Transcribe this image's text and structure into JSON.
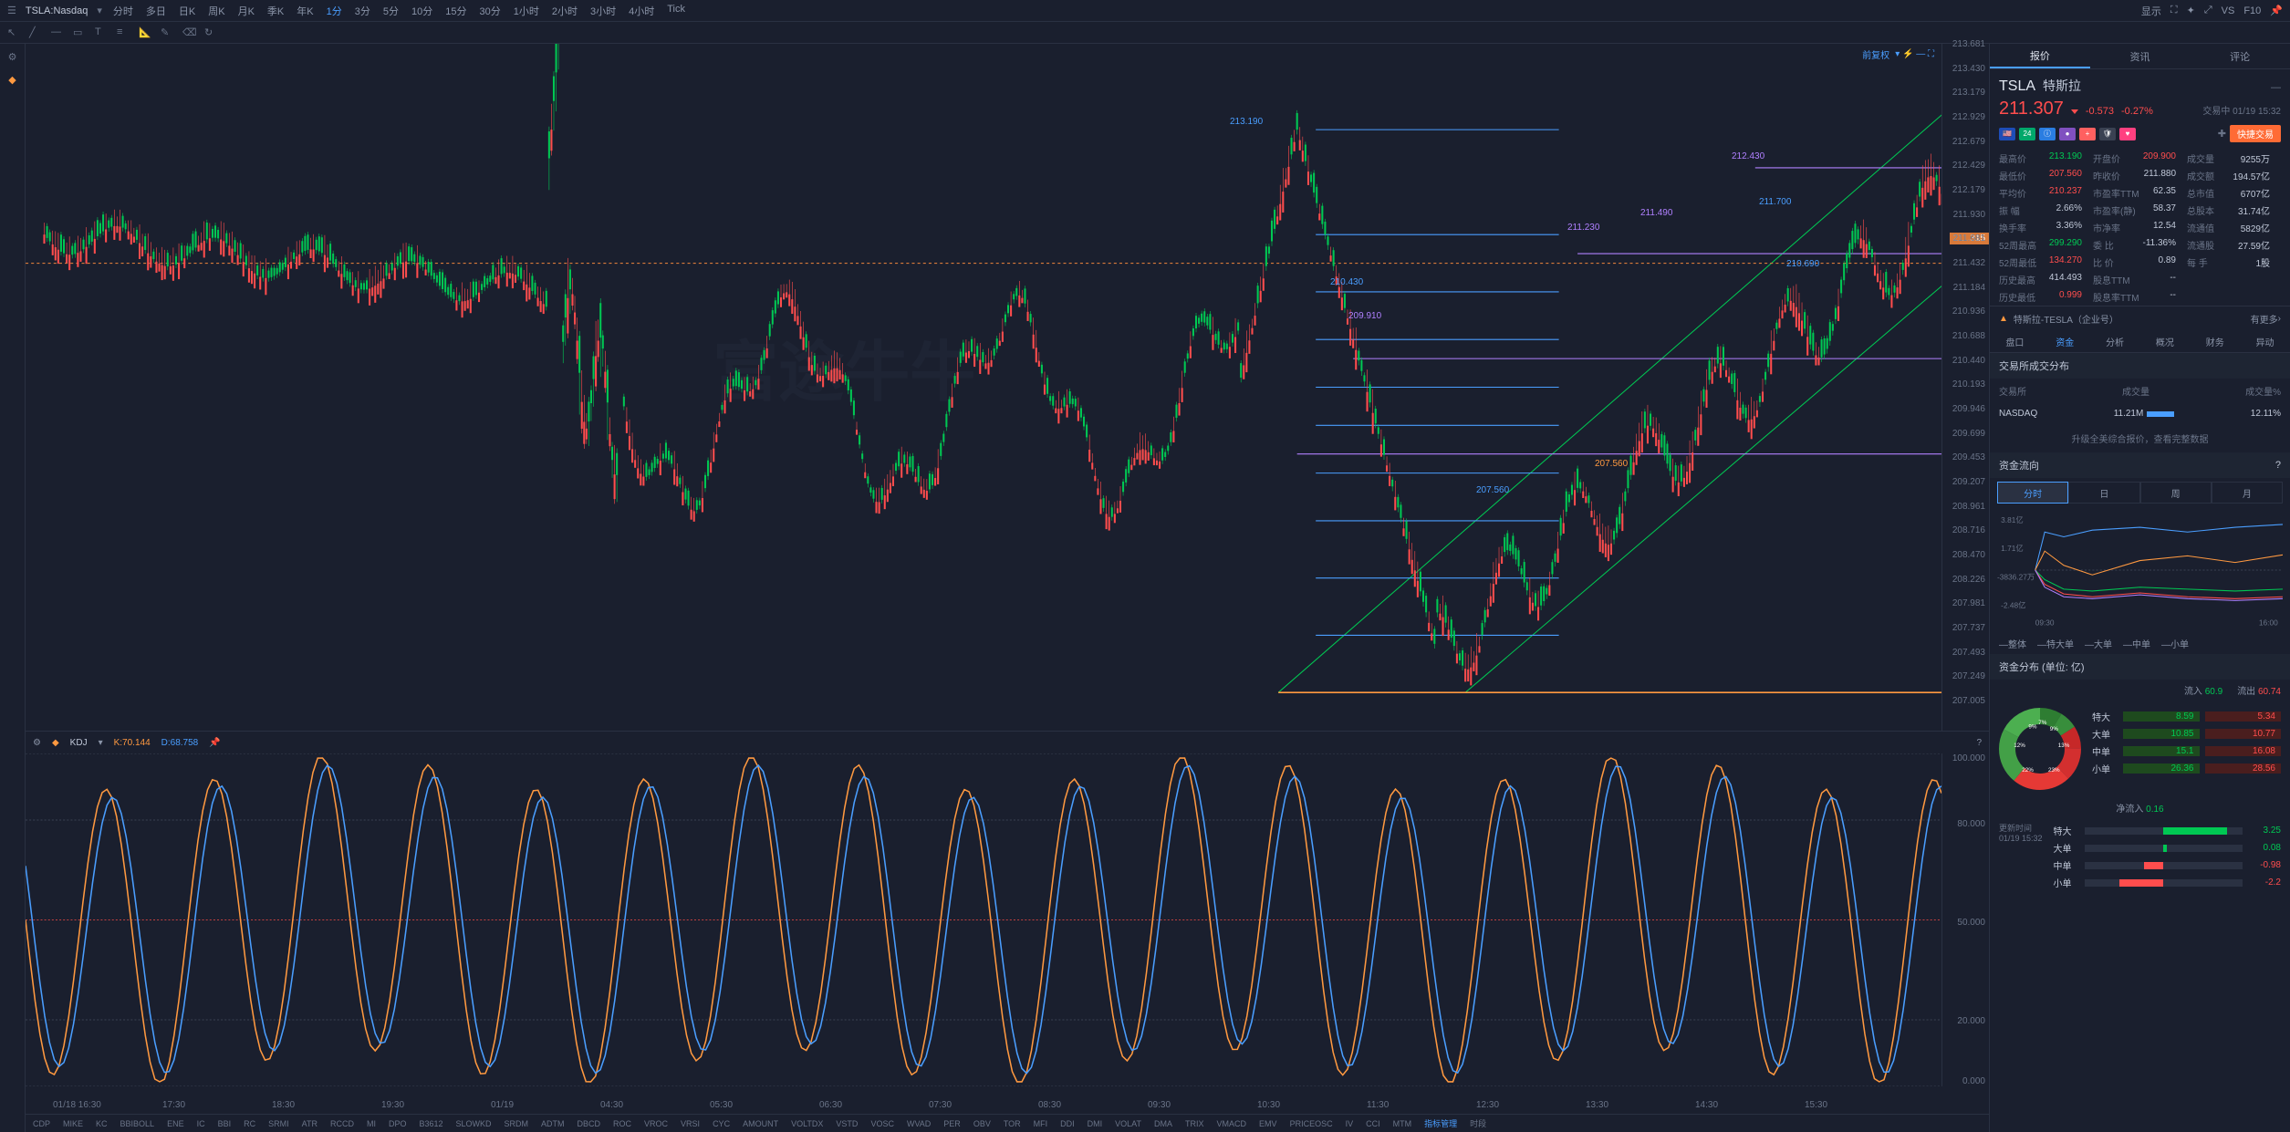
{
  "topbar": {
    "ticker": "TSLA:Nasdaq",
    "timeframes": [
      "分时",
      "多日",
      "日K",
      "周K",
      "月K",
      "季K",
      "年K",
      "1分",
      "3分",
      "5分",
      "10分",
      "15分",
      "30分",
      "1小时",
      "2小时",
      "3小时",
      "4小时",
      "Tick"
    ],
    "active_tf": "1分",
    "right": {
      "display": "显示",
      "vs": "VS",
      "f10": "F10"
    }
  },
  "chart": {
    "adj_label": "前复权",
    "price_ticks": [
      "213.681",
      "213.430",
      "213.179",
      "212.929",
      "212.679",
      "212.429",
      "212.179",
      "211.930",
      "211.681",
      "211.432",
      "211.184",
      "210.936",
      "210.688",
      "210.440",
      "210.193",
      "209.946",
      "209.699",
      "209.453",
      "209.207",
      "208.961",
      "208.716",
      "208.470",
      "208.226",
      "207.981",
      "207.737",
      "207.493",
      "207.249",
      "207.005"
    ],
    "current_price": "211.315",
    "price_marker_alt": "211.184",
    "annotations": {
      "a1": "213.190",
      "a2": "212.430",
      "a3": "211.700",
      "a4": "211.490",
      "a5": "211.230",
      "a6": "210.690",
      "a7": "210.430",
      "a8": "209.910",
      "a9": "207.560",
      "a10": "207.560"
    },
    "time_ticks": [
      "01/18 16:30",
      "17:30",
      "18:30",
      "19:30",
      "01/19",
      "04:30",
      "05:30",
      "06:30",
      "07:30",
      "08:30",
      "09:30",
      "10:30",
      "11:30",
      "12:30",
      "13:30",
      "14:30",
      "15:30"
    ],
    "watermark": "富途牛牛"
  },
  "kdj": {
    "title": "KDJ",
    "k_label": "K:70.144",
    "d_label": "D:68.758",
    "y_ticks": [
      "100.000",
      "80.000",
      "50.000",
      "20.000",
      "0.000"
    ]
  },
  "indicators": [
    "CDP",
    "MIKE",
    "KC",
    "BBIBOLL",
    "ENE",
    "IC",
    "BBI",
    "RC",
    "SRMI",
    "ATR",
    "RCCD",
    "MI",
    "DPO",
    "B3612",
    "SLOWKD",
    "SRDM",
    "ADTM",
    "DBCD",
    "ROC",
    "VROC",
    "VRSI",
    "CYC",
    "AMOUNT",
    "VOLTDX",
    "VSTD",
    "VOSC",
    "WVAD",
    "PER",
    "OBV",
    "TOR",
    "MFI",
    "DDI",
    "DMI",
    "VOLAT",
    "DMA",
    "TRIX",
    "VMACD",
    "EMV",
    "PRICEOSC",
    "IV",
    "CCI",
    "MTM",
    "指标管理",
    "时段"
  ],
  "right": {
    "tabs": [
      "报价",
      "资讯",
      "评论"
    ],
    "symbol": "TSLA",
    "name": "特斯拉",
    "price": "211.307",
    "change_abs": "-0.573",
    "change_pct": "-0.27%",
    "timestamp": "交易中 01/19 15:32",
    "quick_trade": "快捷交易",
    "stats": [
      [
        [
          "最高价",
          "213.190",
          "green"
        ],
        [
          "开盘价",
          "209.900",
          "red"
        ],
        [
          "成交量",
          "9255万",
          ""
        ]
      ],
      [
        [
          "最低价",
          "207.560",
          "red"
        ],
        [
          "昨收价",
          "211.880",
          ""
        ],
        [
          "成交额",
          "194.57亿",
          ""
        ]
      ],
      [
        [
          "平均价",
          "210.237",
          "red"
        ],
        [
          "市盈率TTM",
          "62.35",
          ""
        ],
        [
          "总市值",
          "6707亿",
          ""
        ]
      ],
      [
        [
          "振 幅",
          "2.66%",
          ""
        ],
        [
          "市盈率(静)",
          "58.37",
          ""
        ],
        [
          "总股本",
          "31.74亿",
          ""
        ]
      ],
      [
        [
          "换手率",
          "3.36%",
          ""
        ],
        [
          "市净率",
          "12.54",
          ""
        ],
        [
          "流通值",
          "5829亿",
          ""
        ]
      ],
      [
        [
          "52周最高",
          "299.290",
          "green"
        ],
        [
          "委 比",
          "-11.36%",
          ""
        ],
        [
          "流通股",
          "27.59亿",
          ""
        ]
      ],
      [
        [
          "52周最低",
          "134.270",
          "red"
        ],
        [
          "比 价",
          "0.89",
          ""
        ],
        [
          "每 手",
          "1股",
          ""
        ]
      ],
      [
        [
          "历史最高",
          "414.493",
          ""
        ],
        [
          "股息TTM",
          "--",
          ""
        ],
        [
          "",
          "",
          ""
        ]
      ],
      [
        [
          "历史最低",
          "0.999",
          "red"
        ],
        [
          "股息率TTM",
          "--",
          ""
        ],
        [
          "",
          "",
          ""
        ]
      ]
    ],
    "company_link": "特斯拉-TESLA（企业号）",
    "more": "有更多",
    "subtabs": [
      "盘口",
      "资金",
      "分析",
      "概况",
      "财务",
      "异动"
    ],
    "active_subtab": "资金",
    "exchange_header": [
      "交易所",
      "成交量",
      "成交量%"
    ],
    "exchange_row": [
      "NASDAQ",
      "11.21M",
      "12.11%"
    ],
    "upgrade_msg": "升级全美综合报价，查看完整数据",
    "flow_title": "资金流向",
    "flow_tabs": [
      "分时",
      "日",
      "周",
      "月"
    ],
    "flow_y": [
      "3.81亿",
      "1.71亿",
      "-3836.27万",
      "-2.48亿"
    ],
    "flow_x": [
      "09:30",
      "16:00"
    ],
    "order_tabs": [
      "—整体",
      "—特大单",
      "—大单",
      "—中单",
      "—小单"
    ],
    "dist_title": "资金分布 (单位: 亿)",
    "dist_header": {
      "inflow_label": "流入",
      "inflow_val": "60.9",
      "outflow_label": "流出",
      "outflow_val": "60.74"
    },
    "pie_slices": [
      {
        "label": "9%",
        "color": "#2e7d32"
      },
      {
        "label": "7%",
        "color": "#388e3c"
      },
      {
        "label": "9%",
        "color": "#c62828"
      },
      {
        "label": "13%",
        "color": "#d32f2f"
      },
      {
        "label": "23%",
        "color": "#e53935"
      },
      {
        "label": "22%",
        "color": "#43a047"
      },
      {
        "label": "12%",
        "color": "#4caf50"
      }
    ],
    "pie_legend": [
      {
        "label": "特大",
        "in": "8.59",
        "out": "5.34"
      },
      {
        "label": "大单",
        "in": "10.85",
        "out": "10.77"
      },
      {
        "label": "中单",
        "in": "15.1",
        "out": "16.08"
      },
      {
        "label": "小单",
        "in": "26.36",
        "out": "28.56"
      }
    ],
    "net_inflow": {
      "label": "净流入",
      "val": "0.16"
    },
    "update_time": {
      "label": "更新时间",
      "val": "01/19 15:32"
    },
    "bars": [
      {
        "label": "特大",
        "val": "3.25",
        "color": "#00c853",
        "width": 40
      },
      {
        "label": "大单",
        "val": "0.08",
        "color": "#00c853",
        "width": 2
      },
      {
        "label": "中单",
        "val": "-0.98",
        "color": "#ff4d4d",
        "width": 12
      },
      {
        "label": "小单",
        "val": "-2.2",
        "color": "#ff4d4d",
        "width": 28
      }
    ]
  },
  "colors": {
    "bg": "#1a1f2e",
    "green": "#00c853",
    "red": "#ff4d4d",
    "blue": "#4a9eff",
    "orange": "#ff9940",
    "purple": "#b080ff",
    "k_orange": "#ff9940",
    "d_blue": "#4a9eff"
  }
}
